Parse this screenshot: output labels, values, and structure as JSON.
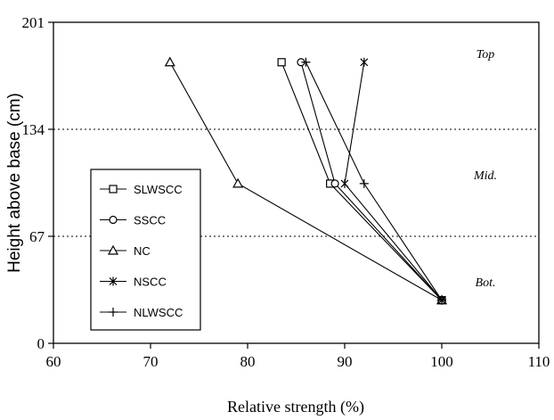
{
  "chart_data": {
    "type": "line",
    "title": "",
    "xlabel": "Relative strength (%)",
    "ylabel": "Height above base (cm)",
    "xlim": [
      60,
      110
    ],
    "ylim": [
      0,
      201
    ],
    "xticks": [
      "60",
      "70",
      "80",
      "90",
      "100",
      "110"
    ],
    "yticks": [
      "0",
      "67",
      "134",
      "201"
    ],
    "reference_lines": [
      {
        "axis": "y",
        "value": 134,
        "style": "dotted"
      },
      {
        "axis": "y",
        "value": 67,
        "style": "dotted"
      }
    ],
    "zone_labels": [
      "Top",
      "Mid.",
      "Bot."
    ],
    "legend_position": "left",
    "grid": false,
    "series": [
      {
        "name": "SLWSCC",
        "marker": "square",
        "x": [
          100,
          88.5,
          83.5
        ],
        "y": [
          27,
          100,
          176
        ]
      },
      {
        "name": "SSCC",
        "marker": "circle",
        "x": [
          100,
          89,
          85.5
        ],
        "y": [
          27,
          100,
          176
        ]
      },
      {
        "name": "NC",
        "marker": "triangle",
        "x": [
          100,
          79,
          72
        ],
        "y": [
          27,
          100,
          176
        ]
      },
      {
        "name": "NSCC",
        "marker": "star",
        "x": [
          100,
          90,
          92
        ],
        "y": [
          27,
          100,
          176
        ]
      },
      {
        "name": "NLWSCC",
        "marker": "plus",
        "x": [
          100,
          92,
          86
        ],
        "y": [
          27,
          100,
          176
        ]
      }
    ]
  }
}
